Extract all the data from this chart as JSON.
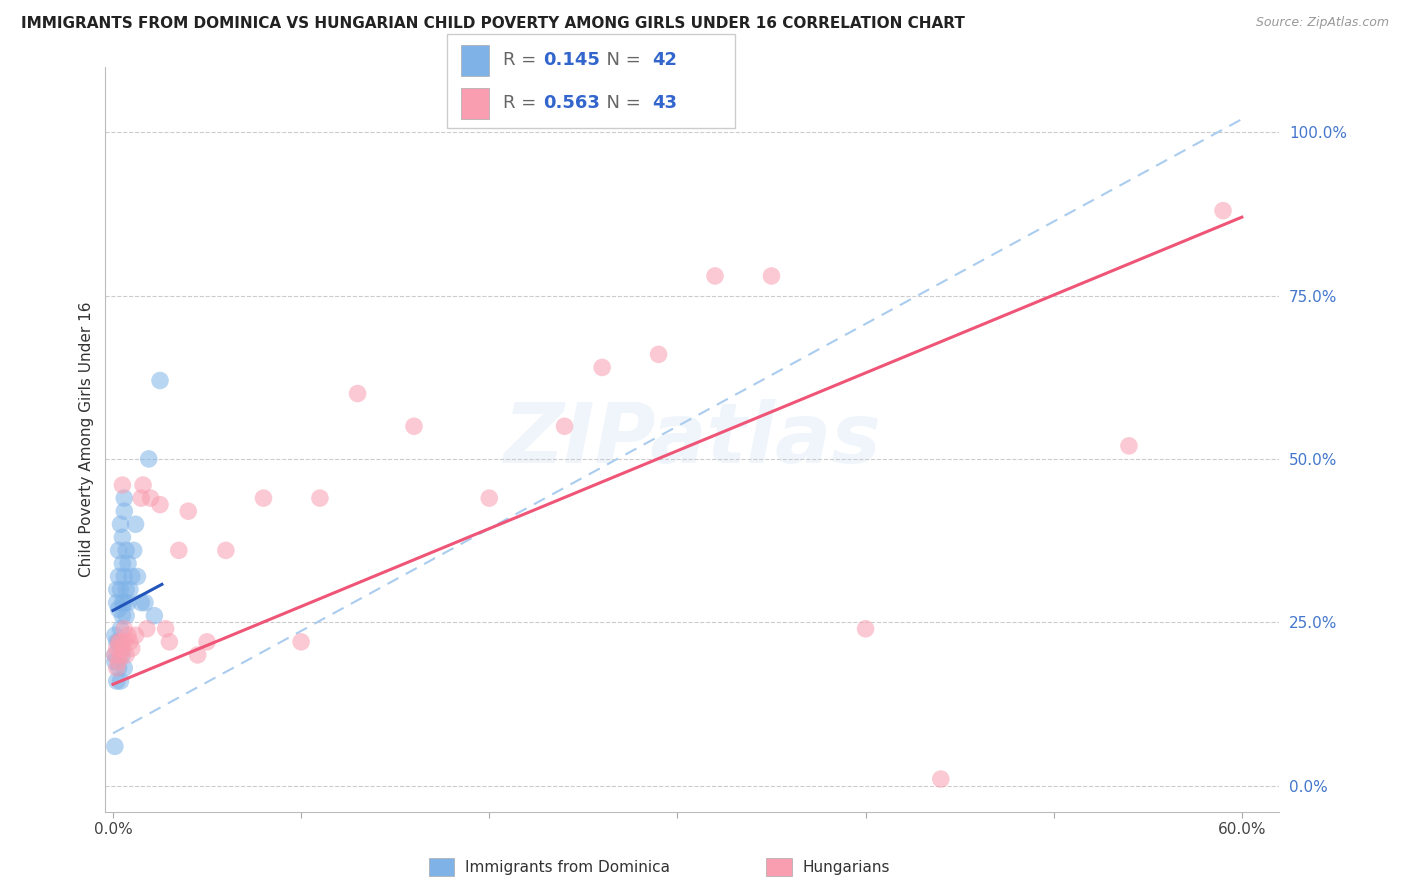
{
  "title": "IMMIGRANTS FROM DOMINICA VS HUNGARIAN CHILD POVERTY AMONG GIRLS UNDER 16 CORRELATION CHART",
  "source": "Source: ZipAtlas.com",
  "ylabel": "Child Poverty Among Girls Under 16",
  "yaxis_labels": [
    "0.0%",
    "25.0%",
    "50.0%",
    "75.0%",
    "100.0%"
  ],
  "yaxis_values": [
    0.0,
    0.25,
    0.5,
    0.75,
    1.0
  ],
  "legend_blue_r": "0.145",
  "legend_blue_n": "42",
  "legend_pink_r": "0.563",
  "legend_pink_n": "43",
  "blue_color": "#7fb3e8",
  "pink_color": "#f99db0",
  "blue_line_color": "#2255bb",
  "pink_line_color": "#ee5577",
  "dashed_line_color": "#aaccee",
  "watermark": "ZIPatlas",
  "blue_x": [
    0.001,
    0.001,
    0.001,
    0.002,
    0.002,
    0.002,
    0.003,
    0.003,
    0.003,
    0.003,
    0.004,
    0.004,
    0.004,
    0.005,
    0.005,
    0.005,
    0.005,
    0.006,
    0.006,
    0.006,
    0.006,
    0.007,
    0.007,
    0.007,
    0.008,
    0.008,
    0.009,
    0.01,
    0.011,
    0.012,
    0.013,
    0.015,
    0.017,
    0.019,
    0.022,
    0.025,
    0.001,
    0.002,
    0.003,
    0.004,
    0.005,
    0.006
  ],
  "blue_y": [
    0.2,
    0.23,
    0.19,
    0.28,
    0.3,
    0.22,
    0.27,
    0.32,
    0.36,
    0.18,
    0.4,
    0.3,
    0.24,
    0.34,
    0.38,
    0.28,
    0.26,
    0.42,
    0.44,
    0.32,
    0.28,
    0.36,
    0.3,
    0.26,
    0.34,
    0.28,
    0.3,
    0.32,
    0.36,
    0.4,
    0.32,
    0.28,
    0.28,
    0.5,
    0.26,
    0.62,
    0.06,
    0.16,
    0.22,
    0.16,
    0.2,
    0.18
  ],
  "pink_x": [
    0.001,
    0.002,
    0.002,
    0.003,
    0.003,
    0.004,
    0.004,
    0.005,
    0.005,
    0.006,
    0.006,
    0.007,
    0.008,
    0.009,
    0.01,
    0.012,
    0.015,
    0.016,
    0.018,
    0.02,
    0.025,
    0.028,
    0.03,
    0.035,
    0.04,
    0.045,
    0.05,
    0.06,
    0.08,
    0.1,
    0.11,
    0.13,
    0.16,
    0.2,
    0.24,
    0.26,
    0.29,
    0.32,
    0.35,
    0.4,
    0.44,
    0.54,
    0.59
  ],
  "pink_y": [
    0.2,
    0.21,
    0.18,
    0.19,
    0.22,
    0.2,
    0.22,
    0.21,
    0.46,
    0.22,
    0.24,
    0.2,
    0.23,
    0.22,
    0.21,
    0.23,
    0.44,
    0.46,
    0.24,
    0.44,
    0.43,
    0.24,
    0.22,
    0.36,
    0.42,
    0.2,
    0.22,
    0.36,
    0.44,
    0.22,
    0.44,
    0.6,
    0.55,
    0.44,
    0.55,
    0.64,
    0.66,
    0.78,
    0.78,
    0.24,
    0.01,
    0.52,
    0.88
  ],
  "blue_line_x": [
    0.0,
    0.026
  ],
  "blue_line_y": [
    0.268,
    0.308
  ],
  "pink_line_x": [
    0.0,
    0.6
  ],
  "pink_line_y": [
    0.155,
    0.87
  ],
  "dash_line_x": [
    0.0,
    0.6
  ],
  "dash_line_y": [
    0.08,
    1.02
  ],
  "xlim": [
    -0.004,
    0.62
  ],
  "ylim": [
    -0.04,
    1.1
  ]
}
